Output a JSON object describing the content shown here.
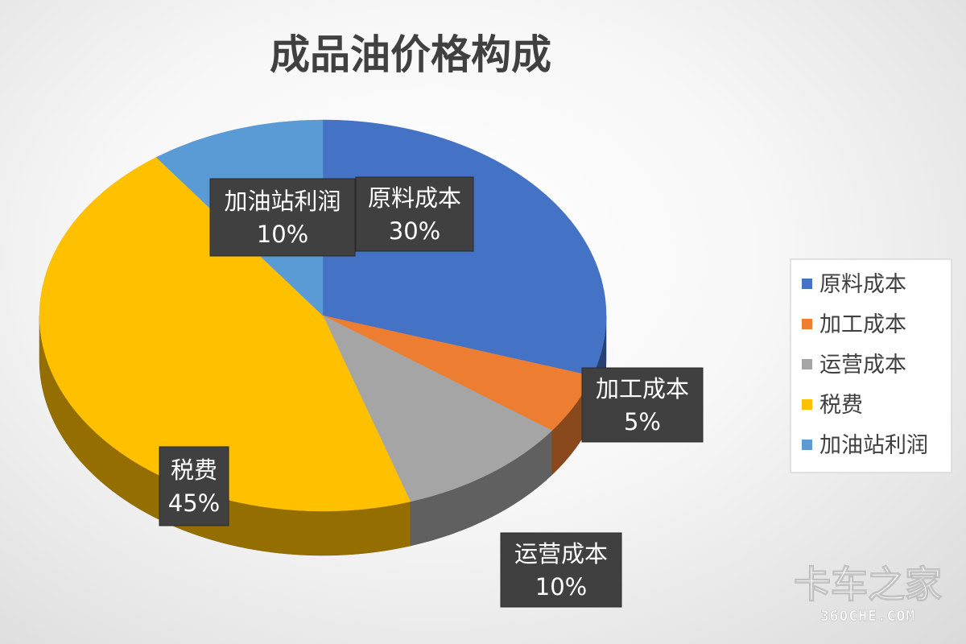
{
  "chart_data": {
    "type": "pie",
    "title": "成品油价格构成",
    "slices": [
      {
        "name": "原料成本",
        "value": 30,
        "label_value": "30%",
        "color": "#4472C4"
      },
      {
        "name": "加工成本",
        "value": 5,
        "label_value": "5%",
        "color": "#ED7D31"
      },
      {
        "name": "运营成本",
        "value": 10,
        "label_value": "10%",
        "color": "#A5A5A5"
      },
      {
        "name": "税费",
        "value": 45,
        "label_value": "45%",
        "color": "#FFC000"
      },
      {
        "name": "加油站利润",
        "value": 10,
        "label_value": "10%",
        "color": "#5B9BD5"
      }
    ],
    "legend": {
      "placement": "right",
      "entries": [
        "原料成本",
        "加工成本",
        "运营成本",
        "税费",
        "加油站利润"
      ]
    },
    "style": "3d"
  },
  "watermark": {
    "text_cn": "卡车之家",
    "text_en": "360CHE.COM"
  }
}
